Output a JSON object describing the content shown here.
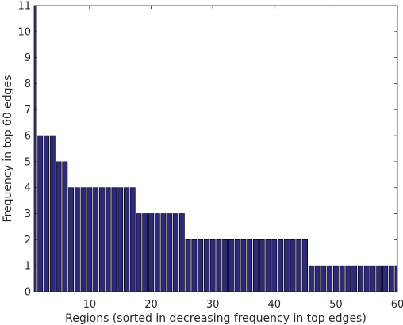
{
  "chart_data": {
    "type": "bar",
    "title": "",
    "xlabel": "Regions (sorted in decreasing frequency in top edges)",
    "ylabel": "Frequency in top 60 edges",
    "xlim": [
      1,
      60
    ],
    "ylim": [
      0,
      11
    ],
    "xticks": [
      10,
      20,
      30,
      40,
      50,
      60
    ],
    "yticks": [
      0,
      1,
      2,
      3,
      4,
      5,
      6,
      7,
      8,
      9,
      10,
      11
    ],
    "grid": false,
    "bar_color": "#2e2a7a",
    "x": [
      1,
      2,
      3,
      4,
      5,
      6,
      7,
      8,
      9,
      10,
      11,
      12,
      13,
      14,
      15,
      16,
      17,
      18,
      19,
      20,
      21,
      22,
      23,
      24,
      25,
      26,
      27,
      28,
      29,
      30,
      31,
      32,
      33,
      34,
      35,
      36,
      37,
      38,
      39,
      40,
      41,
      42,
      43,
      44,
      45,
      46,
      47,
      48,
      49,
      50,
      51,
      52,
      53,
      54,
      55,
      56,
      57,
      58,
      59,
      60
    ],
    "values": [
      11,
      6,
      6,
      6,
      5,
      5,
      4,
      4,
      4,
      4,
      4,
      4,
      4,
      4,
      4,
      4,
      4,
      3,
      3,
      3,
      3,
      3,
      3,
      3,
      3,
      2,
      2,
      2,
      2,
      2,
      2,
      2,
      2,
      2,
      2,
      2,
      2,
      2,
      2,
      2,
      2,
      2,
      2,
      2,
      2,
      1,
      1,
      1,
      1,
      1,
      1,
      1,
      1,
      1,
      1,
      1,
      1,
      1,
      1,
      1
    ]
  }
}
